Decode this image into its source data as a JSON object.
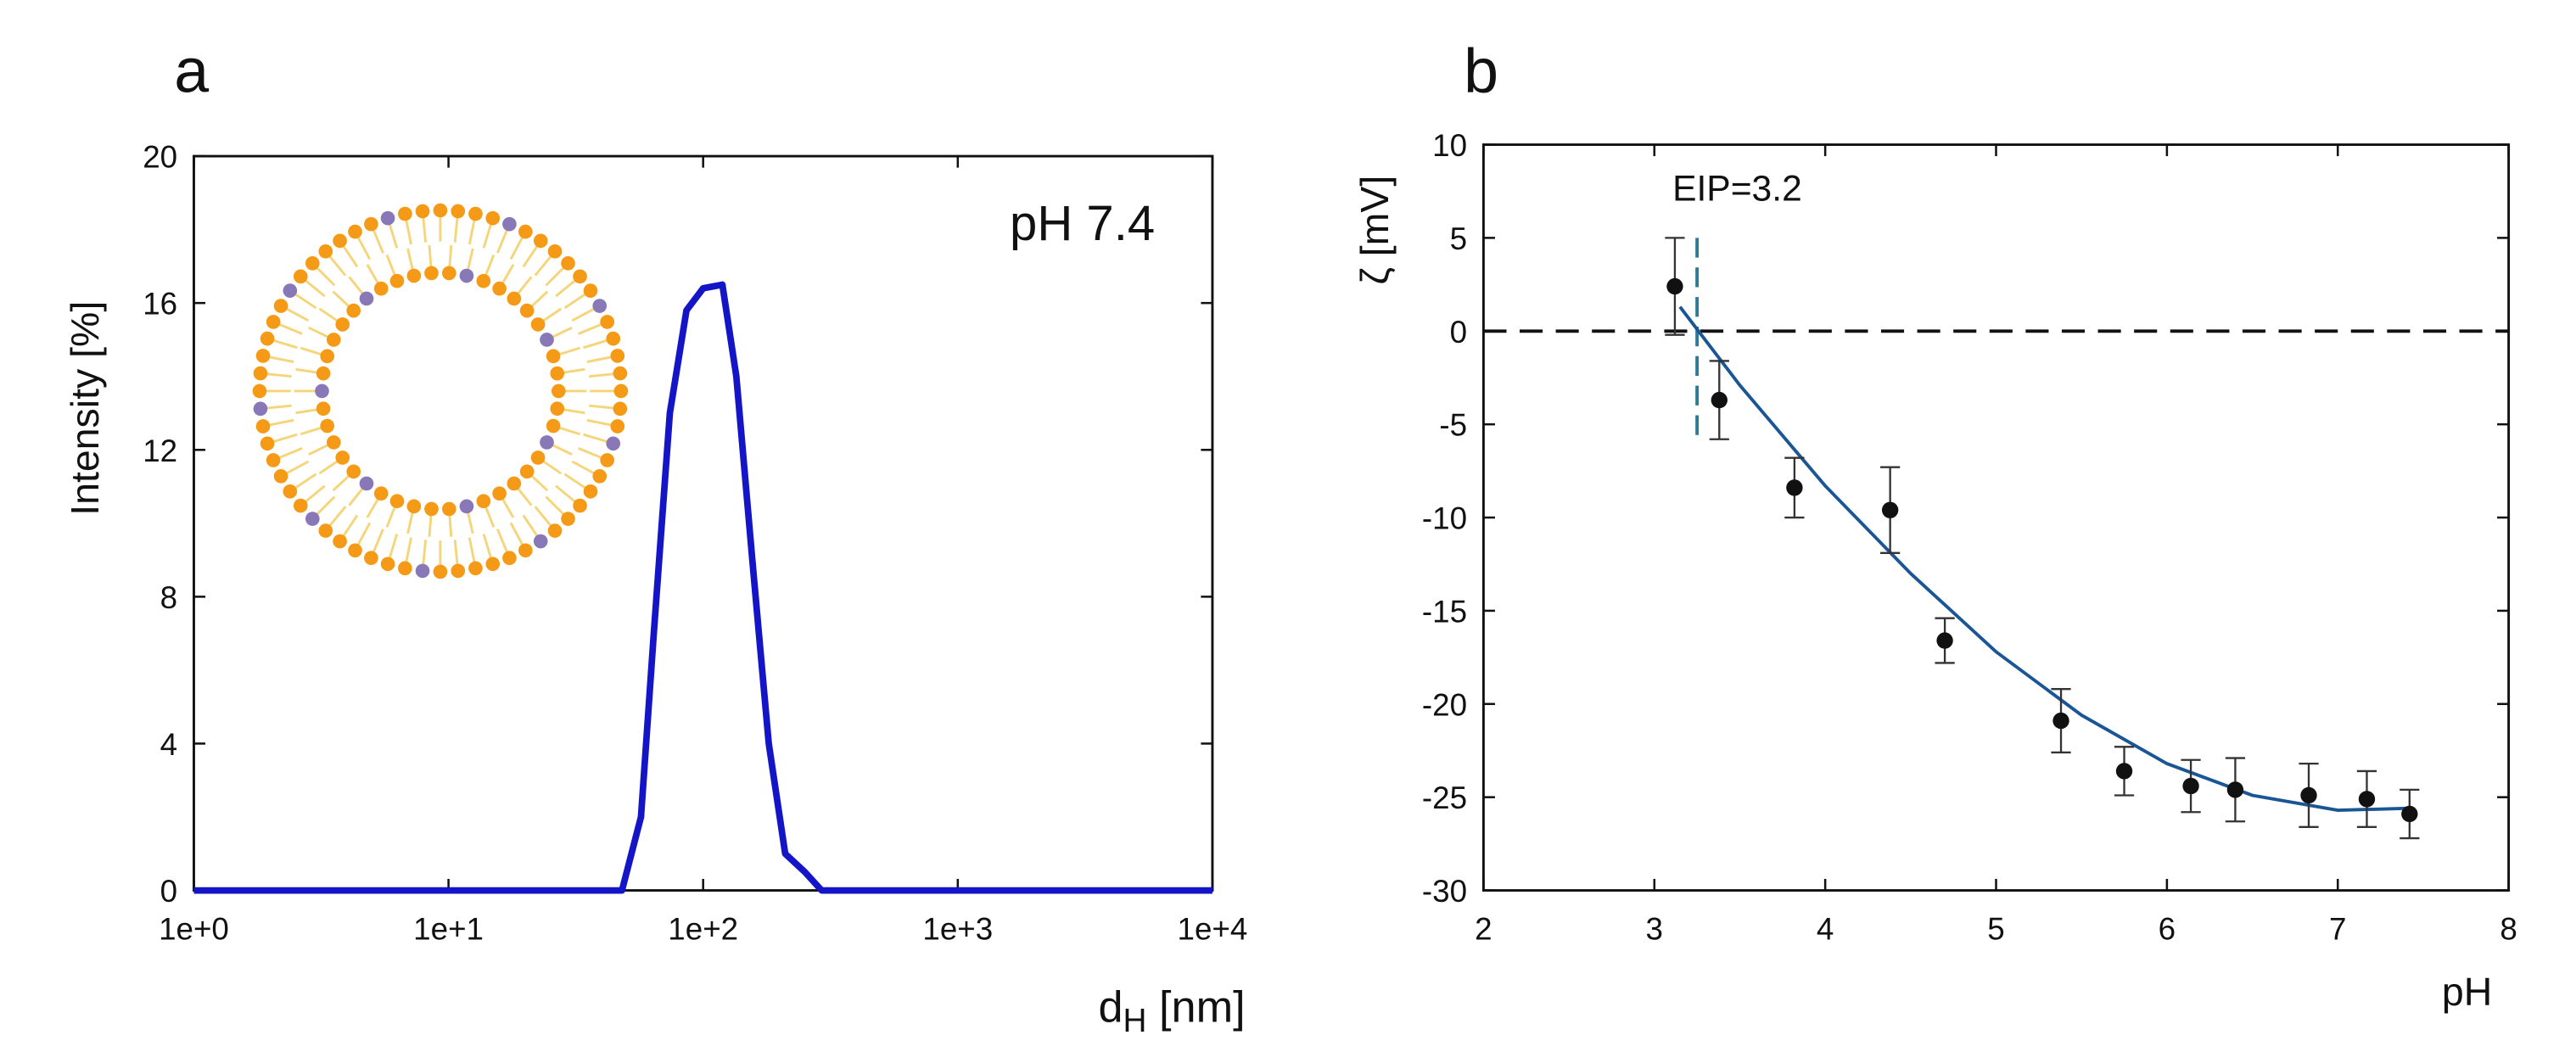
{
  "chart_data": [
    {
      "type": "line",
      "panel_label": "a",
      "ylabel": "Intensity [%]",
      "xlabel": {
        "text": "d",
        "subscript": "H",
        "suffix": " [nm]"
      },
      "annotation": "pH 7.4",
      "xscale": "log",
      "color": "#1515c8",
      "xlim": [
        1,
        10000
      ],
      "xticks": [
        {
          "value": 1,
          "label": "1e+0"
        },
        {
          "value": 10,
          "label": "1e+1"
        },
        {
          "value": 100,
          "label": "1e+2"
        },
        {
          "value": 1000,
          "label": "1e+3"
        },
        {
          "value": 10000,
          "label": "1e+4"
        }
      ],
      "ylim": [
        0,
        20
      ],
      "yticks": [
        0,
        4,
        8,
        12,
        16,
        20
      ],
      "x": [
        1,
        48,
        57,
        64,
        74,
        86,
        100,
        119,
        135,
        156,
        181,
        210,
        251,
        292,
        10000
      ],
      "values": [
        0,
        0,
        2,
        7,
        13,
        15.8,
        16.4,
        16.5,
        14,
        9,
        4,
        1,
        0.5,
        0,
        0
      ]
    },
    {
      "type": "scatter",
      "panel_label": "b",
      "ylabel": "ζ [mV]",
      "xlabel": "pH",
      "annotation": "EIP=3.2",
      "color": "#111111",
      "xlim": [
        2,
        8
      ],
      "xticks": [
        2,
        3,
        4,
        5,
        6,
        7,
        8
      ],
      "ylim": [
        -30,
        10
      ],
      "yticks": [
        -30,
        -25,
        -20,
        -15,
        -10,
        -5,
        0,
        5,
        10
      ],
      "x": [
        3.12,
        3.38,
        3.82,
        4.38,
        4.7,
        5.38,
        5.75,
        6.14,
        6.4,
        6.83,
        7.17,
        7.42
      ],
      "values": [
        2.4,
        -3.7,
        -8.4,
        -9.6,
        -16.6,
        -20.9,
        -23.6,
        -24.4,
        -24.6,
        -24.9,
        -25.1,
        -25.9
      ],
      "errors": [
        2.6,
        2.1,
        1.6,
        2.3,
        1.2,
        1.7,
        1.3,
        1.4,
        1.7,
        1.7,
        1.5,
        1.3
      ],
      "fit": {
        "color": "#1a5596",
        "x": [
          3.15,
          3.5,
          4,
          4.5,
          5,
          5.5,
          6,
          6.5,
          7,
          7.4
        ],
        "values": [
          1.3,
          -2.9,
          -8.3,
          -13,
          -17.2,
          -20.6,
          -23.2,
          -24.9,
          -25.7,
          -25.6
        ]
      },
      "hline": 0,
      "vline": 3.25,
      "vline_color": "#2a7a96"
    }
  ]
}
